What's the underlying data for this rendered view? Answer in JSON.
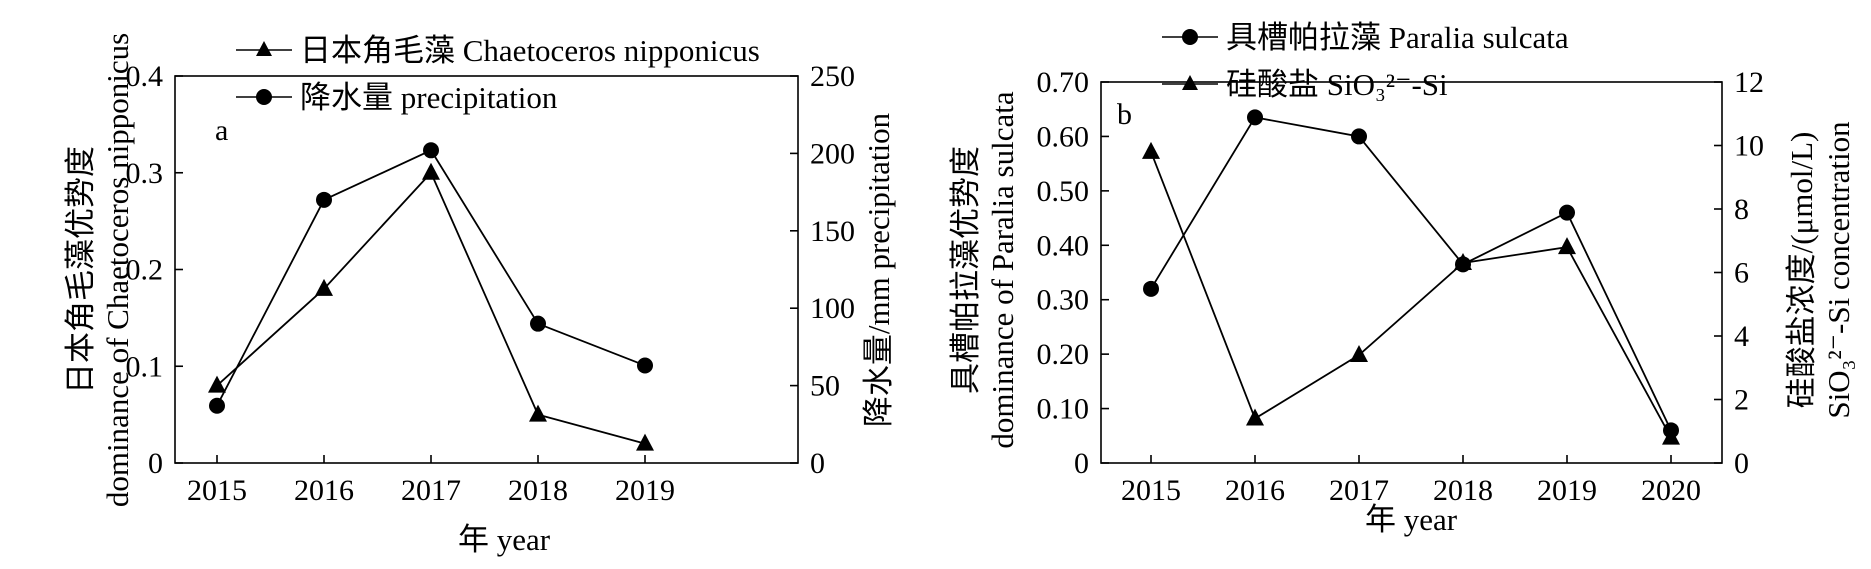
{
  "chart_data": [
    {
      "type": "line",
      "panel_label": "a",
      "categories": [
        "2015",
        "2016",
        "2017",
        "2018",
        "2019"
      ],
      "series": [
        {
          "name": "日本角毛藻 Chaetoceros nipponicus",
          "marker": "triangle",
          "axis": "left",
          "values": [
            0.08,
            0.18,
            0.3,
            0.05,
            0.02
          ]
        },
        {
          "name": "降水量 precipitation",
          "marker": "circle",
          "axis": "right",
          "values": [
            37,
            170,
            202,
            90,
            63
          ]
        }
      ],
      "y_left": {
        "label_lines": [
          "日本角毛藻优势度",
          "dominance of Chaetoceros nipponicus"
        ],
        "ylim": [
          0,
          0.4
        ],
        "ticks": [
          "0",
          "0.1",
          "0.2",
          "0.3",
          "0.4"
        ]
      },
      "y_right": {
        "label": "降水量/mm precipitation",
        "ylim": [
          0,
          250
        ],
        "ticks": [
          "0",
          "50",
          "100",
          "150",
          "200",
          "250"
        ]
      },
      "xlabel": "年 year",
      "legend": "top-left",
      "grid": false
    },
    {
      "type": "line",
      "panel_label": "b",
      "categories": [
        "2015",
        "2016",
        "2017",
        "2018",
        "2019",
        "2020"
      ],
      "series": [
        {
          "name": "具槽帕拉藻 Paralia sulcata",
          "marker": "circle",
          "axis": "left",
          "values": [
            0.32,
            0.635,
            0.6,
            0.365,
            0.46,
            0.06
          ]
        },
        {
          "name": "硅酸盐 SiO₃²⁻-Si",
          "marker": "triangle",
          "axis": "right",
          "values": [
            9.8,
            1.4,
            3.4,
            6.3,
            6.8,
            0.8
          ]
        }
      ],
      "y_left": {
        "label_lines": [
          "具槽帕拉藻优势度",
          "dominance of Paralia sulcata"
        ],
        "ylim": [
          0,
          0.7
        ],
        "ticks": [
          "0",
          "0.10",
          "0.20",
          "0.30",
          "0.40",
          "0.50",
          "0.60",
          "0.70"
        ]
      },
      "y_right": {
        "label_lines": [
          "硅酸盐浓度/(μmol/L)",
          "SiO₃²⁻-Si concentration"
        ],
        "ylim": [
          0,
          12
        ],
        "ticks": [
          "0",
          "2",
          "4",
          "6",
          "8",
          "10",
          "12"
        ]
      },
      "xlabel": "年 year",
      "legend": "top-left",
      "grid": false
    }
  ],
  "colors": {
    "line": "#000000",
    "marker": "#000000",
    "background": "#ffffff"
  }
}
